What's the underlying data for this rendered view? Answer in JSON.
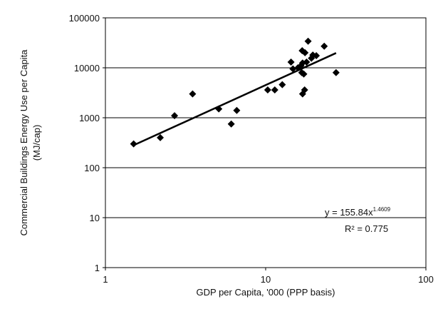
{
  "chart_data": {
    "type": "scatter",
    "title": "",
    "xlabel": "GDP per Capita, '000 (PPP basis)",
    "ylabel_line1": "Commercial Buildings Energy Use per Capita",
    "ylabel_line2": "(MJ/cap)",
    "x_scale": "log",
    "y_scale": "log",
    "xlim": [
      1,
      100
    ],
    "ylim": [
      1,
      100000
    ],
    "x_ticks": [
      1,
      10,
      100
    ],
    "y_ticks": [
      1,
      10,
      100,
      1000,
      10000,
      100000
    ],
    "x_tick_labels": [
      "1",
      "10",
      "100"
    ],
    "y_tick_labels": [
      "1",
      "10",
      "100",
      "1000",
      "10000",
      "100000"
    ],
    "grid": {
      "horizontal": true,
      "vertical": false
    },
    "points": [
      [
        1.5,
        300
      ],
      [
        2.2,
        400
      ],
      [
        2.7,
        1100
      ],
      [
        3.5,
        3000
      ],
      [
        5.1,
        1500
      ],
      [
        6.1,
        750
      ],
      [
        6.6,
        1400
      ],
      [
        10.3,
        3600
      ],
      [
        11.4,
        3600
      ],
      [
        12.7,
        4600
      ],
      [
        14.4,
        13000
      ],
      [
        14.8,
        9500
      ],
      [
        15.9,
        10000
      ],
      [
        16.6,
        11000
      ],
      [
        17.0,
        12500
      ],
      [
        16.8,
        8000
      ],
      [
        17.3,
        7500
      ],
      [
        17.0,
        3000
      ],
      [
        17.5,
        3600
      ],
      [
        16.9,
        22000
      ],
      [
        17.6,
        20000
      ],
      [
        18.4,
        34000
      ],
      [
        18.0,
        13000
      ],
      [
        19.3,
        15500
      ],
      [
        19.7,
        18000
      ],
      [
        20.7,
        17500
      ],
      [
        23.2,
        27000
      ],
      [
        27.5,
        8000
      ]
    ],
    "marker_color": "#000000",
    "trendline": {
      "type": "power",
      "coefficient": 155.84,
      "exponent": 1.4609,
      "x_range": [
        1.5,
        27.5
      ],
      "equation_text": "y = 155.84x",
      "exponent_text": "1.4609",
      "r2_text": "R² = 0.775"
    }
  }
}
